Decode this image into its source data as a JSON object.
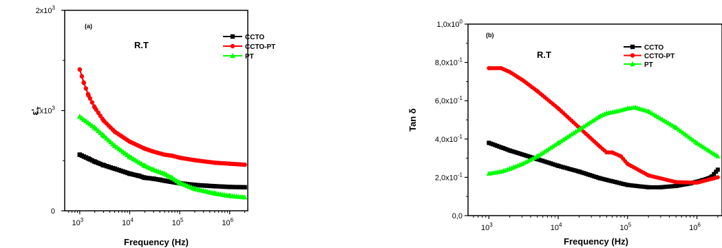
{
  "chart_data": [
    {
      "type": "scatter",
      "panel_label": "(a)",
      "annotation": "R.T",
      "xlabel": "Frequency (Hz)",
      "ylabel_main": "ε'",
      "ylabel_sub": "r",
      "xscale": "log",
      "xlim": [
        500,
        2300000
      ],
      "ylim": [
        0,
        2000
      ],
      "xticks": [
        {
          "value": 1000,
          "base": "10",
          "exp": "3"
        },
        {
          "value": 10000,
          "base": "10",
          "exp": "4"
        },
        {
          "value": 100000,
          "base": "10",
          "exp": "5"
        },
        {
          "value": 1000000,
          "base": "10",
          "exp": "6"
        }
      ],
      "yticks": [
        {
          "value": 0,
          "label": "0",
          "exp": ""
        },
        {
          "value": 1000,
          "label": "1x10",
          "exp": "3"
        },
        {
          "value": 2000,
          "label": "2x10",
          "exp": "3"
        }
      ],
      "legend_position": "top-right",
      "series": [
        {
          "name": "CCTO",
          "color": "#000000",
          "marker": "square",
          "x": [
            1000,
            1500,
            2000,
            3000,
            5000,
            10000,
            15000,
            20000,
            30000,
            40000,
            50000,
            100000,
            200000,
            500000,
            1000000,
            2000000
          ],
          "y": [
            560,
            520,
            490,
            455,
            420,
            370,
            350,
            330,
            320,
            310,
            300,
            275,
            258,
            245,
            238,
            235
          ]
        },
        {
          "name": "CCTO-PT",
          "color": "#ff0000",
          "marker": "circle",
          "x": [
            1000,
            1200,
            1500,
            2000,
            3000,
            5000,
            10000,
            20000,
            30000,
            50000,
            70000,
            100000,
            200000,
            500000,
            1000000,
            2000000
          ],
          "y": [
            1410,
            1280,
            1150,
            1030,
            900,
            790,
            690,
            620,
            590,
            560,
            550,
            530,
            505,
            480,
            470,
            460
          ]
        },
        {
          "name": "PT",
          "color": "#00ff00",
          "marker": "triangle",
          "x": [
            1000,
            2000,
            3000,
            5000,
            10000,
            20000,
            30000,
            50000,
            70000,
            100000,
            200000,
            500000,
            1000000,
            2000000
          ],
          "y": [
            940,
            830,
            750,
            650,
            540,
            450,
            410,
            370,
            330,
            280,
            220,
            175,
            150,
            135
          ]
        }
      ]
    },
    {
      "type": "scatter",
      "panel_label": "(b)",
      "annotation": "R.T",
      "xlabel": "Frequency (Hz)",
      "ylabel_main": "Tan δ",
      "ylabel_sub": "",
      "xscale": "log",
      "xlim": [
        500,
        2300000
      ],
      "ylim": [
        0,
        1.0
      ],
      "xticks": [
        {
          "value": 1000,
          "base": "10",
          "exp": "3"
        },
        {
          "value": 10000,
          "base": "10",
          "exp": "4"
        },
        {
          "value": 100000,
          "base": "10",
          "exp": "5"
        },
        {
          "value": 1000000,
          "base": "10",
          "exp": "6"
        }
      ],
      "yticks": [
        {
          "value": 0,
          "label": "0,0",
          "exp": ""
        },
        {
          "value": 0.2,
          "label": "2,0x10",
          "exp": "-1"
        },
        {
          "value": 0.4,
          "label": "4,0x10",
          "exp": "-1"
        },
        {
          "value": 0.6,
          "label": "6,0x10",
          "exp": "-1"
        },
        {
          "value": 0.8,
          "label": "8,0x10",
          "exp": "-1"
        },
        {
          "value": 1.0,
          "label": "1,0x10",
          "exp": "0"
        }
      ],
      "legend_position": "top-right",
      "series": [
        {
          "name": "CCTO",
          "color": "#000000",
          "marker": "square",
          "x": [
            1000,
            2000,
            5000,
            10000,
            20000,
            40000,
            100000,
            200000,
            300000,
            500000,
            800000,
            1200000,
            1600000,
            2000000
          ],
          "y": [
            0.38,
            0.34,
            0.295,
            0.26,
            0.23,
            0.195,
            0.16,
            0.148,
            0.148,
            0.155,
            0.168,
            0.185,
            0.2,
            0.24
          ]
        },
        {
          "name": "CCTO-PT",
          "color": "#ff0000",
          "marker": "circle",
          "x": [
            1000,
            1500,
            2000,
            3000,
            5000,
            10000,
            20000,
            40000,
            50000,
            60000,
            80000,
            100000,
            200000,
            500000,
            1000000,
            2000000
          ],
          "y": [
            0.77,
            0.77,
            0.75,
            0.71,
            0.65,
            0.56,
            0.46,
            0.36,
            0.33,
            0.33,
            0.31,
            0.27,
            0.21,
            0.175,
            0.172,
            0.2
          ]
        },
        {
          "name": "PT",
          "color": "#00ff00",
          "marker": "triangle",
          "x": [
            1000,
            1500,
            2000,
            3000,
            5000,
            10000,
            20000,
            40000,
            50000,
            70000,
            100000,
            130000,
            200000,
            500000,
            1000000,
            2000000
          ],
          "y": [
            0.22,
            0.23,
            0.245,
            0.27,
            0.31,
            0.38,
            0.45,
            0.52,
            0.535,
            0.545,
            0.56,
            0.565,
            0.545,
            0.46,
            0.38,
            0.31
          ]
        }
      ]
    }
  ]
}
